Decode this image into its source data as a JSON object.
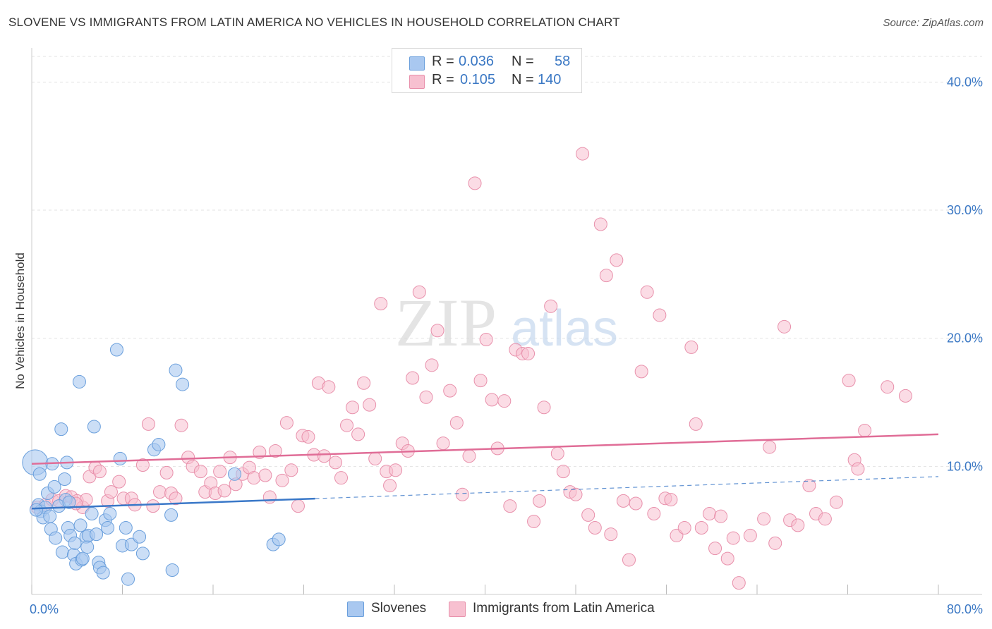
{
  "title": "SLOVENE VS IMMIGRANTS FROM LATIN AMERICA NO VEHICLES IN HOUSEHOLD CORRELATION CHART",
  "source": "Source: ZipAtlas.com",
  "watermark": {
    "zip": "ZIP",
    "atlas": "atlas"
  },
  "legend_top": {
    "rows": [
      {
        "r_label": "R =",
        "r_value": "0.036",
        "n_label": "N =",
        "n_value": "58"
      },
      {
        "r_label": "R =",
        "r_value": "0.105",
        "n_label": "N =",
        "n_value": "140"
      }
    ]
  },
  "chart_data": {
    "type": "scatter",
    "title": "SLOVENE VS IMMIGRANTS FROM LATIN AMERICA NO VEHICLES IN HOUSEHOLD CORRELATION CHART",
    "xlabel": "",
    "ylabel": "No Vehicles in Household",
    "xlim": [
      0,
      80
    ],
    "ylim": [
      0,
      42
    ],
    "x_tick_labels": [
      {
        "value": 0,
        "label": "0.0%"
      },
      {
        "value": 80,
        "label": "80.0%"
      }
    ],
    "y_tick_labels": [
      {
        "value": 10,
        "label": "10.0%"
      },
      {
        "value": 20,
        "label": "20.0%"
      },
      {
        "value": 30,
        "label": "30.0%"
      },
      {
        "value": 40,
        "label": "40.0%"
      }
    ],
    "grid": {
      "horizontal": true,
      "style": "dashed"
    },
    "legend_position": "bottom",
    "colors": {
      "Slovenes_fill": "#a9c8f0",
      "Slovenes_stroke": "#6a9fdc",
      "Slovenes_line": "#3a78c8",
      "Latin_fill": "#f7c0d0",
      "Latin_stroke": "#e890ab",
      "Latin_line": "#e06d97",
      "accent_text": "#3b78c4"
    },
    "series": [
      {
        "name": "Slovenes",
        "trend": {
          "x0": 0,
          "y0": 6.7,
          "x1": 80,
          "y1": 9.2,
          "solid_until": 25
        },
        "points": [
          [
            0.3,
            10.3
          ],
          [
            0.7,
            9.4
          ],
          [
            0.6,
            7.0
          ],
          [
            0.8,
            6.5
          ],
          [
            1.0,
            6.0
          ],
          [
            1.2,
            6.8
          ],
          [
            1.4,
            7.9
          ],
          [
            1.6,
            6.1
          ],
          [
            1.7,
            5.1
          ],
          [
            1.8,
            10.2
          ],
          [
            2.0,
            8.4
          ],
          [
            2.1,
            4.4
          ],
          [
            2.6,
            12.9
          ],
          [
            2.7,
            3.3
          ],
          [
            2.9,
            9.0
          ],
          [
            3.0,
            7.4
          ],
          [
            3.1,
            10.3
          ],
          [
            3.2,
            5.2
          ],
          [
            3.4,
            4.6
          ],
          [
            3.7,
            3.1
          ],
          [
            3.8,
            4.0
          ],
          [
            3.9,
            2.4
          ],
          [
            4.2,
            16.6
          ],
          [
            4.3,
            5.4
          ],
          [
            4.4,
            2.7
          ],
          [
            4.5,
            2.8
          ],
          [
            4.8,
            4.5
          ],
          [
            4.9,
            3.7
          ],
          [
            5.0,
            4.6
          ],
          [
            5.3,
            6.3
          ],
          [
            5.5,
            13.1
          ],
          [
            5.7,
            4.7
          ],
          [
            5.9,
            2.5
          ],
          [
            6.0,
            2.1
          ],
          [
            6.3,
            1.7
          ],
          [
            6.5,
            5.8
          ],
          [
            6.7,
            5.2
          ],
          [
            6.9,
            6.3
          ],
          [
            7.5,
            19.1
          ],
          [
            7.8,
            10.6
          ],
          [
            8.0,
            3.8
          ],
          [
            8.3,
            5.2
          ],
          [
            8.5,
            1.2
          ],
          [
            8.8,
            3.9
          ],
          [
            9.5,
            4.5
          ],
          [
            9.8,
            3.2
          ],
          [
            10.8,
            11.3
          ],
          [
            11.2,
            11.7
          ],
          [
            12.3,
            6.2
          ],
          [
            12.4,
            1.9
          ],
          [
            12.7,
            17.5
          ],
          [
            13.3,
            16.4
          ],
          [
            17.9,
            9.4
          ],
          [
            21.3,
            3.9
          ],
          [
            21.8,
            4.3
          ],
          [
            2.4,
            6.9
          ],
          [
            3.3,
            7.2
          ],
          [
            0.4,
            6.6
          ]
        ]
      },
      {
        "name": "Immigrants from Latin America",
        "trend": {
          "x0": 0,
          "y0": 10.2,
          "x1": 80,
          "y1": 12.5
        },
        "points": [
          [
            0.5,
            6.8
          ],
          [
            1.2,
            7.0
          ],
          [
            1.8,
            7.4
          ],
          [
            2.4,
            7.3
          ],
          [
            3.0,
            7.7
          ],
          [
            3.5,
            7.6
          ],
          [
            4.0,
            7.3
          ],
          [
            4.5,
            6.8
          ],
          [
            4.8,
            7.4
          ],
          [
            5.1,
            9.2
          ],
          [
            5.6,
            9.9
          ],
          [
            6.0,
            9.6
          ],
          [
            6.7,
            7.3
          ],
          [
            7.0,
            8.0
          ],
          [
            7.7,
            8.8
          ],
          [
            8.1,
            7.5
          ],
          [
            8.8,
            7.5
          ],
          [
            9.1,
            7.0
          ],
          [
            9.8,
            10.1
          ],
          [
            10.3,
            13.3
          ],
          [
            10.7,
            6.9
          ],
          [
            11.3,
            8.0
          ],
          [
            11.9,
            9.5
          ],
          [
            12.3,
            7.9
          ],
          [
            12.7,
            7.5
          ],
          [
            13.2,
            13.2
          ],
          [
            13.8,
            10.7
          ],
          [
            14.2,
            10.0
          ],
          [
            14.9,
            9.6
          ],
          [
            15.3,
            8.0
          ],
          [
            15.8,
            8.7
          ],
          [
            16.2,
            7.9
          ],
          [
            16.6,
            9.6
          ],
          [
            17.0,
            8.1
          ],
          [
            17.5,
            10.7
          ],
          [
            18.0,
            8.6
          ],
          [
            18.6,
            9.4
          ],
          [
            19.2,
            9.9
          ],
          [
            19.6,
            9.1
          ],
          [
            20.1,
            11.1
          ],
          [
            20.6,
            9.3
          ],
          [
            21.0,
            7.6
          ],
          [
            21.5,
            11.2
          ],
          [
            22.1,
            8.9
          ],
          [
            22.5,
            13.4
          ],
          [
            22.9,
            9.7
          ],
          [
            23.5,
            6.9
          ],
          [
            23.9,
            12.4
          ],
          [
            24.4,
            12.3
          ],
          [
            24.9,
            10.9
          ],
          [
            25.3,
            16.5
          ],
          [
            25.8,
            10.8
          ],
          [
            26.2,
            16.2
          ],
          [
            26.8,
            10.3
          ],
          [
            27.3,
            9.1
          ],
          [
            27.8,
            13.2
          ],
          [
            28.3,
            14.6
          ],
          [
            28.8,
            12.5
          ],
          [
            29.3,
            16.5
          ],
          [
            29.8,
            14.8
          ],
          [
            30.3,
            10.6
          ],
          [
            30.8,
            22.7
          ],
          [
            31.3,
            9.6
          ],
          [
            31.6,
            8.5
          ],
          [
            32.1,
            9.7
          ],
          [
            32.7,
            11.8
          ],
          [
            33.2,
            11.2
          ],
          [
            33.6,
            16.9
          ],
          [
            34.2,
            23.6
          ],
          [
            34.8,
            15.4
          ],
          [
            35.3,
            17.9
          ],
          [
            35.8,
            20.6
          ],
          [
            36.3,
            11.8
          ],
          [
            36.9,
            15.9
          ],
          [
            37.5,
            13.4
          ],
          [
            38.0,
            7.8
          ],
          [
            38.6,
            10.8
          ],
          [
            39.1,
            32.1
          ],
          [
            39.6,
            16.7
          ],
          [
            40.1,
            19.9
          ],
          [
            40.6,
            15.2
          ],
          [
            41.1,
            11.4
          ],
          [
            41.7,
            15.1
          ],
          [
            42.2,
            6.9
          ],
          [
            42.7,
            19.1
          ],
          [
            43.3,
            18.8
          ],
          [
            43.8,
            18.8
          ],
          [
            44.3,
            5.7
          ],
          [
            44.8,
            7.3
          ],
          [
            45.2,
            14.6
          ],
          [
            45.8,
            22.5
          ],
          [
            46.4,
            11.0
          ],
          [
            46.9,
            9.6
          ],
          [
            47.5,
            8.0
          ],
          [
            48.0,
            7.8
          ],
          [
            48.6,
            34.4
          ],
          [
            49.1,
            6.2
          ],
          [
            49.7,
            5.2
          ],
          [
            50.2,
            28.9
          ],
          [
            50.7,
            24.9
          ],
          [
            51.1,
            4.7
          ],
          [
            51.6,
            26.1
          ],
          [
            52.2,
            7.3
          ],
          [
            52.7,
            2.7
          ],
          [
            53.3,
            7.1
          ],
          [
            53.8,
            17.4
          ],
          [
            54.3,
            23.6
          ],
          [
            54.9,
            6.3
          ],
          [
            55.4,
            21.8
          ],
          [
            55.9,
            7.5
          ],
          [
            56.4,
            7.4
          ],
          [
            56.9,
            4.6
          ],
          [
            57.6,
            5.2
          ],
          [
            58.2,
            19.3
          ],
          [
            58.6,
            13.3
          ],
          [
            59.1,
            5.2
          ],
          [
            59.8,
            6.3
          ],
          [
            60.3,
            3.6
          ],
          [
            60.8,
            6.1
          ],
          [
            61.4,
            2.8
          ],
          [
            61.9,
            4.4
          ],
          [
            62.4,
            0.9
          ],
          [
            63.4,
            4.6
          ],
          [
            64.6,
            5.9
          ],
          [
            65.1,
            11.5
          ],
          [
            65.6,
            4.0
          ],
          [
            66.4,
            20.9
          ],
          [
            66.9,
            5.8
          ],
          [
            67.6,
            5.4
          ],
          [
            68.6,
            8.5
          ],
          [
            69.2,
            6.3
          ],
          [
            70.0,
            5.9
          ],
          [
            71.0,
            7.2
          ],
          [
            72.1,
            16.7
          ],
          [
            72.6,
            10.5
          ],
          [
            72.9,
            9.8
          ],
          [
            73.5,
            12.8
          ],
          [
            75.5,
            16.2
          ],
          [
            77.1,
            15.5
          ],
          [
            3.9,
            7.1
          ]
        ]
      }
    ]
  },
  "legend_bottom": {
    "items": [
      {
        "label": "Slovenes"
      },
      {
        "label": "Immigrants from Latin America"
      }
    ]
  }
}
